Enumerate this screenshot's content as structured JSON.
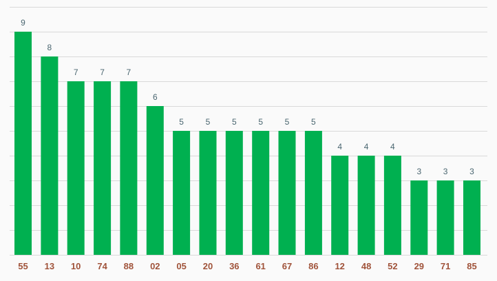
{
  "chart_data": {
    "type": "bar",
    "categories": [
      "55",
      "13",
      "10",
      "74",
      "88",
      "02",
      "05",
      "20",
      "36",
      "61",
      "67",
      "86",
      "12",
      "48",
      "52",
      "29",
      "71",
      "85"
    ],
    "values": [
      9,
      8,
      7,
      7,
      7,
      6,
      5,
      5,
      5,
      5,
      5,
      5,
      4,
      4,
      4,
      3,
      3,
      3
    ],
    "title": "",
    "xlabel": "",
    "ylabel": "",
    "ylim": [
      0,
      10
    ],
    "grid": true,
    "legend": "none",
    "colors": {
      "bar": "#00b050",
      "value_label": "#4a6670",
      "tick_label": "#a0533a",
      "grid": "#d9d9d9",
      "background": "#fafafa"
    }
  }
}
